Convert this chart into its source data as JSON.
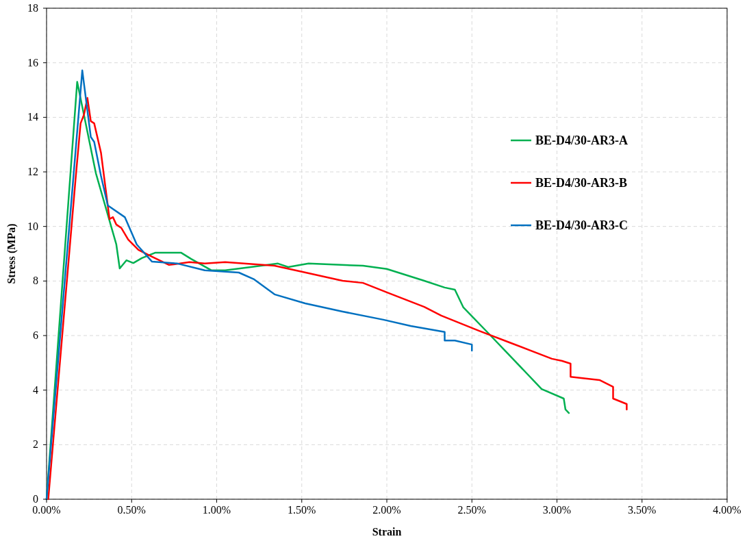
{
  "chart_data": {
    "type": "line",
    "xlabel": "Strain",
    "ylabel": "Stress (MPa)",
    "xlim": [
      0,
      4
    ],
    "xticks": [
      {
        "value": 0,
        "label": "0.00%"
      },
      {
        "value": 0.5,
        "label": "0.50%"
      },
      {
        "value": 1,
        "label": "1.00%"
      },
      {
        "value": 1.5,
        "label": "1.50%"
      },
      {
        "value": 2,
        "label": "2.00%"
      },
      {
        "value": 2.5,
        "label": "2.50%"
      },
      {
        "value": 3,
        "label": "3.00%"
      },
      {
        "value": 3.5,
        "label": "3.50%"
      },
      {
        "value": 4,
        "label": "4.00%"
      }
    ],
    "ylim": [
      0,
      18
    ],
    "yticks": [
      0,
      2,
      4,
      6,
      8,
      10,
      12,
      14,
      16,
      18
    ],
    "grid": true,
    "legend": "right",
    "marker": "none",
    "line_style": "solid",
    "series": [
      {
        "name": "BE-D4/30-AR3-A",
        "color": "#00b050",
        "x": [
          0,
          0.18,
          0.29,
          0.41,
          0.43,
          0.47,
          0.51,
          0.56,
          0.64,
          0.79,
          0.85,
          0.97,
          1.05,
          1.2,
          1.36,
          1.42,
          1.54,
          1.86,
          2.0,
          2.22,
          2.34,
          2.4,
          2.45,
          2.61,
          2.91,
          3.04,
          3.05,
          3.07
        ],
        "values": [
          0,
          15.3,
          11.95,
          9.34,
          8.46,
          8.76,
          8.66,
          8.84,
          9.04,
          9.04,
          8.81,
          8.39,
          8.39,
          8.51,
          8.64,
          8.51,
          8.64,
          8.56,
          8.44,
          8.01,
          7.76,
          7.68,
          7.03,
          6.0,
          4.04,
          3.69,
          3.29,
          3.16
        ]
      },
      {
        "name": "BE-D4/30-AR3-B",
        "color": "#ff0000",
        "x": [
          0.01,
          0.17,
          0.2,
          0.22,
          0.24,
          0.26,
          0.28,
          0.32,
          0.37,
          0.39,
          0.41,
          0.44,
          0.48,
          0.54,
          0.62,
          0.72,
          0.84,
          0.93,
          1.05,
          1.34,
          1.5,
          1.74,
          1.86,
          2.01,
          2.22,
          2.32,
          2.54,
          2.72,
          2.97,
          3.03,
          3.08,
          3.08,
          3.25,
          3.33,
          3.33,
          3.41,
          3.41
        ],
        "values": [
          0,
          11.7,
          13.78,
          14.1,
          14.71,
          13.86,
          13.78,
          12.7,
          10.27,
          10.34,
          10.07,
          9.94,
          9.52,
          9.14,
          8.89,
          8.59,
          8.69,
          8.64,
          8.69,
          8.56,
          8.34,
          8.01,
          7.93,
          7.56,
          7.05,
          6.73,
          6.18,
          5.75,
          5.15,
          5.07,
          4.97,
          4.49,
          4.37,
          4.12,
          3.69,
          3.49,
          3.29
        ]
      },
      {
        "name": "BE-D4/30-AR3-C",
        "color": "#0070c0",
        "x": [
          0,
          0.21,
          0.26,
          0.28,
          0.32,
          0.36,
          0.46,
          0.53,
          0.62,
          0.77,
          0.93,
          1.13,
          1.22,
          1.34,
          1.52,
          1.74,
          1.98,
          2.14,
          2.34,
          2.34,
          2.4,
          2.5,
          2.5
        ],
        "values": [
          0,
          15.72,
          13.28,
          13.1,
          11.85,
          10.77,
          10.34,
          9.34,
          8.71,
          8.64,
          8.39,
          8.31,
          8.06,
          7.51,
          7.18,
          6.88,
          6.58,
          6.35,
          6.13,
          5.82,
          5.82,
          5.67,
          5.45
        ]
      }
    ]
  }
}
